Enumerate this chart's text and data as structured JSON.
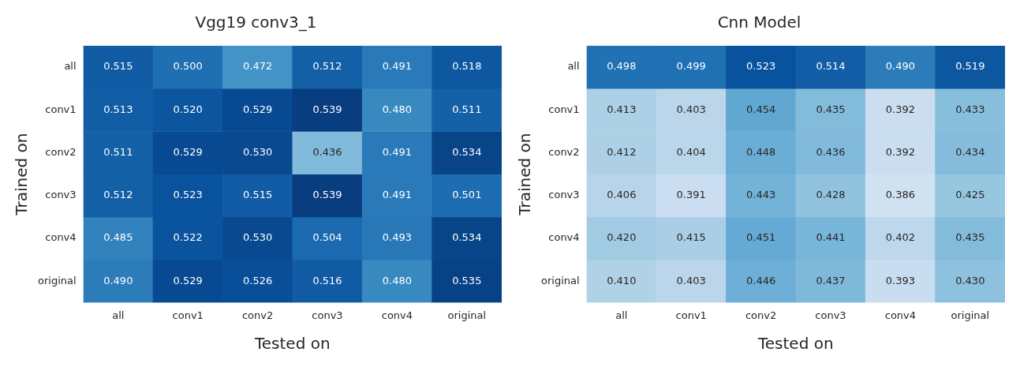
{
  "chart_data": [
    {
      "type": "heatmap",
      "title": "Vgg19 conv3_1",
      "xlabel": "Tested on",
      "ylabel": "Trained on",
      "categories": [
        "all",
        "conv1",
        "conv2",
        "conv3",
        "conv4",
        "original"
      ],
      "y_categories": [
        "all",
        "conv1",
        "conv2",
        "conv3",
        "conv4",
        "original"
      ],
      "cells": [
        [
          0.515,
          0.5,
          0.472,
          0.512,
          0.491,
          0.518
        ],
        [
          0.513,
          0.52,
          0.529,
          0.539,
          0.48,
          0.511
        ],
        [
          0.511,
          0.529,
          0.53,
          0.436,
          0.491,
          0.534
        ],
        [
          0.512,
          0.523,
          0.515,
          0.539,
          0.491,
          0.501
        ],
        [
          0.485,
          0.522,
          0.53,
          0.504,
          0.493,
          0.534
        ],
        [
          0.49,
          0.529,
          0.526,
          0.516,
          0.48,
          0.535
        ]
      ],
      "cell_labels": [
        [
          "0.515",
          "0.500",
          "0.472",
          "0.512",
          "0.491",
          "0.518"
        ],
        [
          "0.513",
          "0.520",
          "0.529",
          "0.539",
          "0.480",
          "0.511"
        ],
        [
          "0.511",
          "0.529",
          "0.530",
          "0.436",
          "0.491",
          "0.534"
        ],
        [
          "0.512",
          "0.523",
          "0.515",
          "0.539",
          "0.491",
          "0.501"
        ],
        [
          "0.485",
          "0.522",
          "0.530",
          "0.504",
          "0.493",
          "0.534"
        ],
        [
          "0.490",
          "0.529",
          "0.526",
          "0.516",
          "0.480",
          "0.535"
        ]
      ]
    },
    {
      "type": "heatmap",
      "title": "Cnn Model",
      "xlabel": "Tested on",
      "ylabel": "Trained on",
      "categories": [
        "all",
        "conv1",
        "conv2",
        "conv3",
        "conv4",
        "original"
      ],
      "y_categories": [
        "all",
        "conv1",
        "conv2",
        "conv3",
        "conv4",
        "original"
      ],
      "cells": [
        [
          0.498,
          0.499,
          0.523,
          0.514,
          0.49,
          0.519
        ],
        [
          0.413,
          0.403,
          0.454,
          0.435,
          0.392,
          0.433
        ],
        [
          0.412,
          0.404,
          0.448,
          0.436,
          0.392,
          0.434
        ],
        [
          0.406,
          0.391,
          0.443,
          0.428,
          0.386,
          0.425
        ],
        [
          0.42,
          0.415,
          0.451,
          0.441,
          0.402,
          0.435
        ],
        [
          0.41,
          0.403,
          0.446,
          0.437,
          0.393,
          0.43
        ]
      ],
      "cell_labels": [
        [
          "0.498",
          "0.499",
          "0.523",
          "0.514",
          "0.490",
          "0.519"
        ],
        [
          "0.413",
          "0.403",
          "0.454",
          "0.435",
          "0.392",
          "0.433"
        ],
        [
          "0.412",
          "0.404",
          "0.448",
          "0.436",
          "0.392",
          "0.434"
        ],
        [
          "0.406",
          "0.391",
          "0.443",
          "0.428",
          "0.386",
          "0.425"
        ],
        [
          "0.420",
          "0.415",
          "0.451",
          "0.441",
          "0.402",
          "0.435"
        ],
        [
          "0.410",
          "0.403",
          "0.446",
          "0.437",
          "0.393",
          "0.430"
        ]
      ]
    }
  ]
}
